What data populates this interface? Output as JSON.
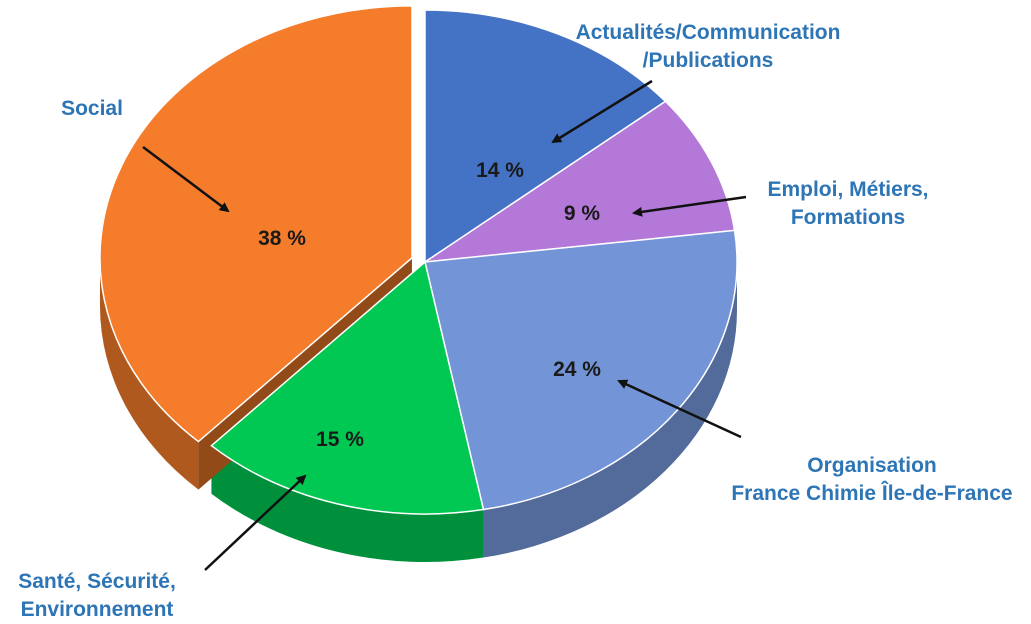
{
  "chart_data": {
    "type": "pie",
    "style": "3d-exploded",
    "slices": [
      {
        "label_lines": [
          "Actualités/Communication",
          "/Publications"
        ],
        "value": 14,
        "display": "14 %",
        "color": "#4472C4"
      },
      {
        "label_lines": [
          "Emploi, Métiers,",
          "Formations"
        ],
        "value": 9,
        "display": "9 %",
        "color": "#B378D8"
      },
      {
        "label_lines": [
          "Organisation",
          "France Chimie Île-de-France"
        ],
        "value": 24,
        "display": "24 %",
        "color": "#7394D6"
      },
      {
        "label_lines": [
          "Santé, Sécurité,",
          "Environnement"
        ],
        "value": 15,
        "display": "15 %",
        "color": "#00C853"
      },
      {
        "label_lines": [
          "Social"
        ],
        "value": 38,
        "display": "38 %",
        "color": "#F57C2A"
      }
    ],
    "label_color": "#2E75B6",
    "legend": "none"
  }
}
